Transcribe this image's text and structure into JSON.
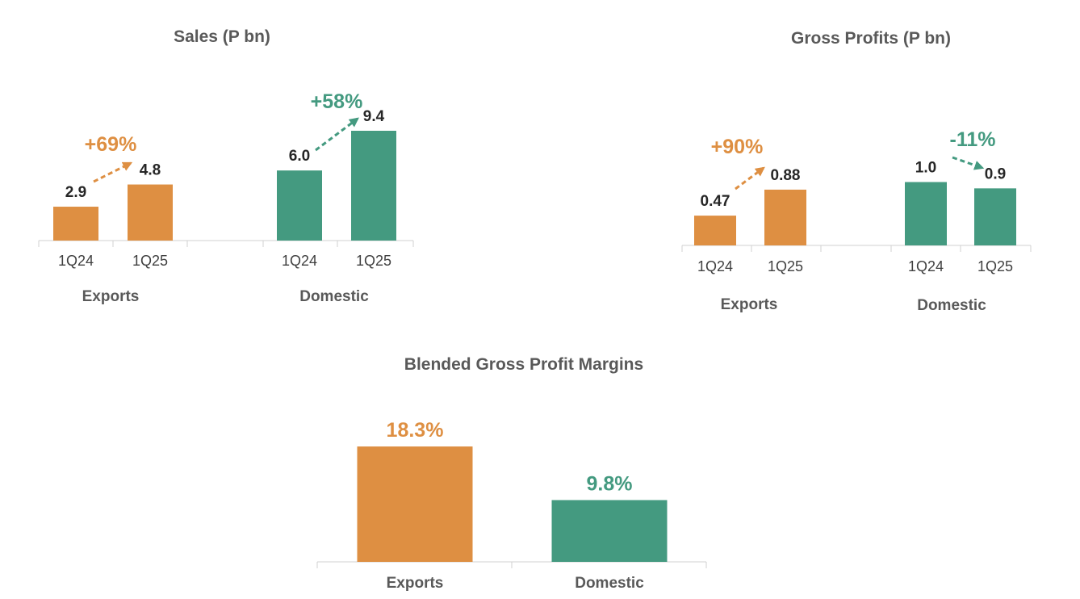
{
  "colors": {
    "exports": "#DE8F42",
    "domestic": "#449A80"
  },
  "chart_data": [
    {
      "type": "bar",
      "title": "Sales (P bn)",
      "groups": [
        {
          "name": "Exports",
          "color_key": "exports",
          "categories": [
            "1Q24",
            "1Q25"
          ],
          "values": [
            2.9,
            4.8
          ],
          "labels": [
            "2.9",
            "4.8"
          ],
          "change": "+69%"
        },
        {
          "name": "Domestic",
          "color_key": "domestic",
          "categories": [
            "1Q24",
            "1Q25"
          ],
          "values": [
            6.0,
            9.4
          ],
          "labels": [
            "6.0",
            "9.4"
          ],
          "change": "+58%"
        }
      ],
      "ylim": [
        0,
        10
      ]
    },
    {
      "type": "bar",
      "title": "Gross Profits (P bn)",
      "groups": [
        {
          "name": "Exports",
          "color_key": "exports",
          "categories": [
            "1Q24",
            "1Q25"
          ],
          "values": [
            0.47,
            0.88
          ],
          "labels": [
            "0.47",
            "0.88"
          ],
          "change": "+90%"
        },
        {
          "name": "Domestic",
          "color_key": "domestic",
          "categories": [
            "1Q24",
            "1Q25"
          ],
          "values": [
            1.0,
            0.9
          ],
          "labels": [
            "1.0",
            "0.9"
          ],
          "change": "-11%"
        }
      ],
      "ylim": [
        0,
        1.5
      ]
    },
    {
      "type": "bar",
      "title": "Blended Gross Profit Margins",
      "categories": [
        "Exports",
        "Domestic"
      ],
      "color_keys": [
        "exports",
        "domestic"
      ],
      "values": [
        18.3,
        9.8
      ],
      "labels": [
        "18.3%",
        "9.8%"
      ],
      "ylim": [
        0,
        20
      ]
    }
  ]
}
